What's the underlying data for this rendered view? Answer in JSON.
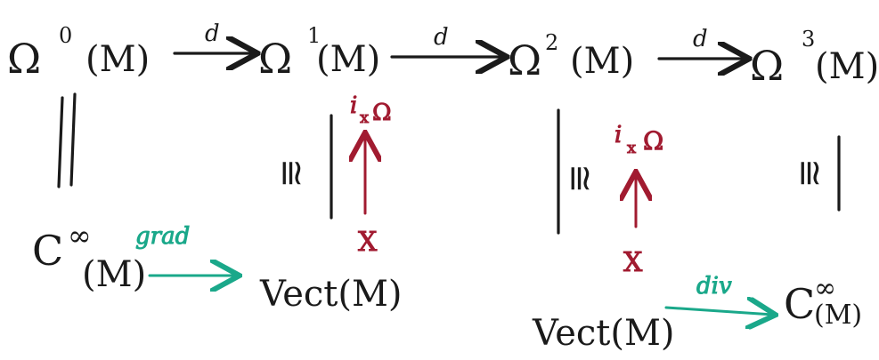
{
  "top_row": {
    "omega0": {
      "base": "Ω",
      "sup": "0",
      "arg": "(M)"
    },
    "omega1": {
      "base": "Ω",
      "sup": "1",
      "arg": "(M)"
    },
    "omega2": {
      "base": "Ω",
      "sup": "2",
      "arg": "(M)"
    },
    "omega3": {
      "base": "Ω",
      "sup": "3",
      "arg": "(M)"
    },
    "d1": "d",
    "d2": "d",
    "d3": "d"
  },
  "vertical": {
    "eq_sign": "||",
    "iso1": "≅",
    "iso2": "≅",
    "iso3": "≅",
    "ix1": "i",
    "ix1_sub": "x",
    "ix1_sym": "Ω",
    "ix2": "i",
    "ix2_sub": "x",
    "ix2_sym": "Ω",
    "x1": "X",
    "x2": "X"
  },
  "bottom_row": {
    "cinf1": {
      "base": "C",
      "sup": "∞",
      "arg": "(M)"
    },
    "grad": "grad",
    "vect1": "Vect(M)",
    "vect2": "Vect(M)",
    "div": "div",
    "cinf2": {
      "base": "C",
      "sup": "∞",
      "arg": "(M)"
    }
  },
  "colors": {
    "ink": "#1a1a1a",
    "green": "#1aa88a",
    "red": "#a11b30"
  }
}
